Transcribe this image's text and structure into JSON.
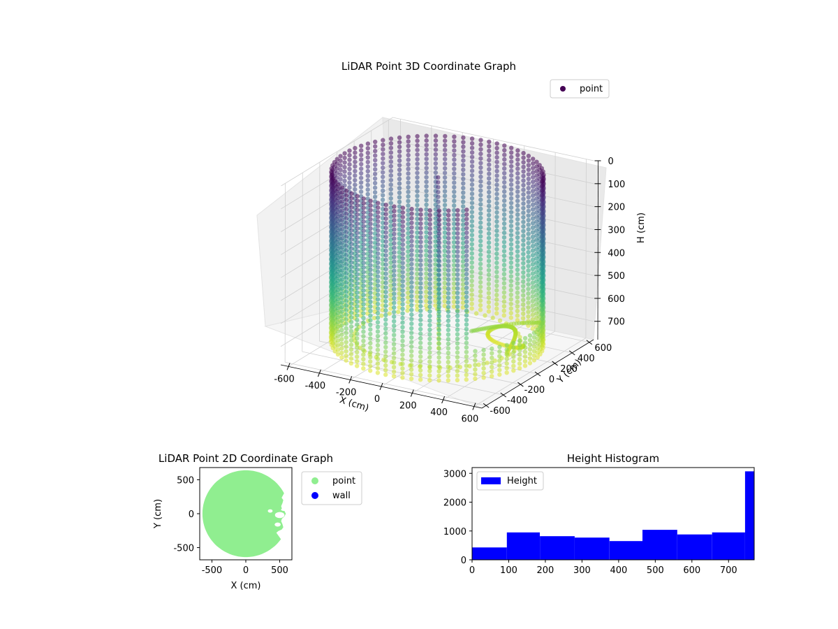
{
  "chart_data": [
    {
      "type": "scatter",
      "title": "LiDAR Point 3D Coordinate Graph",
      "xlabel": "X (cm)",
      "ylabel": "Y (cm)",
      "zlabel": "H (cm)",
      "xlim": [
        -650,
        650
      ],
      "ylim": [
        -650,
        650
      ],
      "zlim": [
        780,
        0
      ],
      "x_ticks": [
        -600,
        -400,
        -200,
        0,
        200,
        400,
        600
      ],
      "y_ticks": [
        -600,
        -400,
        -200,
        0,
        200,
        400,
        600
      ],
      "z_ticks": [
        0,
        100,
        200,
        300,
        400,
        500,
        600,
        700
      ],
      "grid": true,
      "legend": {
        "position": "top-right",
        "entries": [
          "point"
        ]
      },
      "series": [
        {
          "name": "point",
          "color": "#440154",
          "colormap": "viridis"
        }
      ],
      "wall_radius": 600,
      "wall_opening_deg": [
        -45,
        20
      ]
    },
    {
      "type": "scatter",
      "title": "LiDAR Point 2D Coordinate Graph",
      "xlabel": "X (cm)",
      "ylabel": "Y (cm)",
      "xlim": [
        -680,
        680
      ],
      "ylim": [
        -680,
        680
      ],
      "x_ticks": [
        -500,
        0,
        500
      ],
      "y_ticks": [
        -500,
        0,
        500
      ],
      "legend": {
        "position": "outside-right",
        "entries": [
          "point",
          "wall"
        ]
      },
      "series": [
        {
          "name": "point",
          "color": "#90ee90"
        },
        {
          "name": "wall",
          "color": "#0000ff"
        }
      ]
    },
    {
      "type": "bar",
      "title": "Height Histogram",
      "xlim": [
        0,
        770
      ],
      "ylim": [
        0,
        3200
      ],
      "x_ticks": [
        0,
        100,
        200,
        300,
        400,
        500,
        600,
        700
      ],
      "y_ticks": [
        0,
        1000,
        2000,
        3000
      ],
      "legend": {
        "position": "top-left",
        "entries": [
          "Height"
        ]
      },
      "series": [
        {
          "name": "Height",
          "color": "#0000ff"
        }
      ],
      "bins": [
        {
          "x0": 0,
          "x1": 95,
          "count": 430
        },
        {
          "x0": 95,
          "x1": 185,
          "count": 950
        },
        {
          "x0": 185,
          "x1": 280,
          "count": 820
        },
        {
          "x0": 280,
          "x1": 375,
          "count": 770
        },
        {
          "x0": 375,
          "x1": 465,
          "count": 650
        },
        {
          "x0": 465,
          "x1": 560,
          "count": 1040
        },
        {
          "x0": 560,
          "x1": 655,
          "count": 880
        },
        {
          "x0": 655,
          "x1": 745,
          "count": 950
        },
        {
          "x0": 745,
          "x1": 770,
          "count": 3070
        }
      ]
    }
  ]
}
